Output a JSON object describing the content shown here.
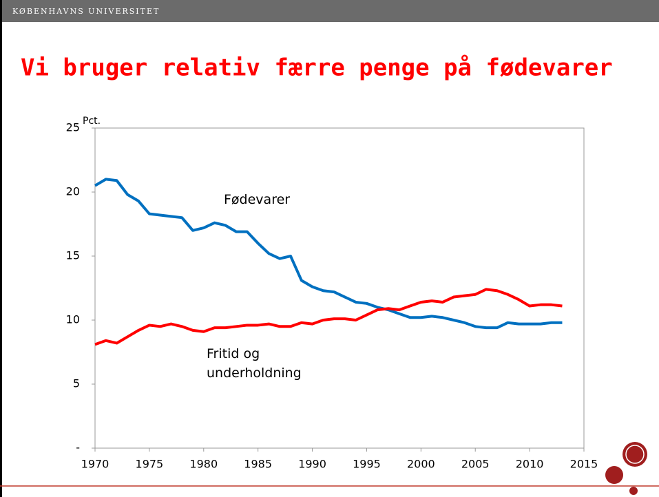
{
  "header": {
    "title": "KØBENHAVNS UNIVERSITET"
  },
  "chart_data": {
    "type": "line",
    "title": "Vi bruger relativ færre penge på fødevarer",
    "y_label": "Pct.",
    "x": [
      1970,
      1971,
      1972,
      1973,
      1974,
      1975,
      1976,
      1977,
      1978,
      1979,
      1980,
      1981,
      1982,
      1983,
      1984,
      1985,
      1986,
      1987,
      1988,
      1989,
      1990,
      1991,
      1992,
      1993,
      1994,
      1995,
      1996,
      1997,
      1998,
      1999,
      2000,
      2001,
      2002,
      2003,
      2004,
      2005,
      2006,
      2007,
      2008,
      2009,
      2010,
      2011,
      2012,
      2013
    ],
    "series": [
      {
        "name": "Fødevarer",
        "color": "#0070c0",
        "values": [
          20.5,
          21.0,
          20.9,
          19.8,
          19.3,
          18.3,
          18.2,
          18.1,
          18.0,
          17.0,
          17.2,
          17.6,
          17.4,
          16.9,
          16.9,
          16.0,
          15.2,
          14.8,
          15.0,
          13.1,
          12.6,
          12.3,
          12.2,
          11.8,
          11.4,
          11.3,
          11.0,
          10.8,
          10.5,
          10.2,
          10.2,
          10.3,
          10.2,
          10.0,
          9.8,
          9.5,
          9.4,
          9.4,
          9.8,
          9.7,
          9.7,
          9.7,
          9.8,
          9.8
        ]
      },
      {
        "name": "Fritid og underholdning",
        "color": "#ff0000",
        "values": [
          8.1,
          8.4,
          8.2,
          8.7,
          9.2,
          9.6,
          9.5,
          9.7,
          9.5,
          9.2,
          9.1,
          9.4,
          9.4,
          9.5,
          9.6,
          9.6,
          9.7,
          9.5,
          9.5,
          9.8,
          9.7,
          10.0,
          10.1,
          10.1,
          10.0,
          10.4,
          10.8,
          10.9,
          10.8,
          11.1,
          11.4,
          11.5,
          11.4,
          11.8,
          11.9,
          12.0,
          12.4,
          12.3,
          12.0,
          11.6,
          11.1,
          11.2,
          11.2,
          11.1
        ]
      }
    ],
    "xlim": [
      1970,
      2015
    ],
    "xticks": [
      1970,
      1975,
      1980,
      1985,
      1990,
      1995,
      2000,
      2005,
      2010,
      2015
    ],
    "ylim": [
      0,
      25
    ],
    "yticks": [
      {
        "value": 0,
        "label": "-"
      },
      5,
      10,
      15,
      20,
      25
    ]
  }
}
